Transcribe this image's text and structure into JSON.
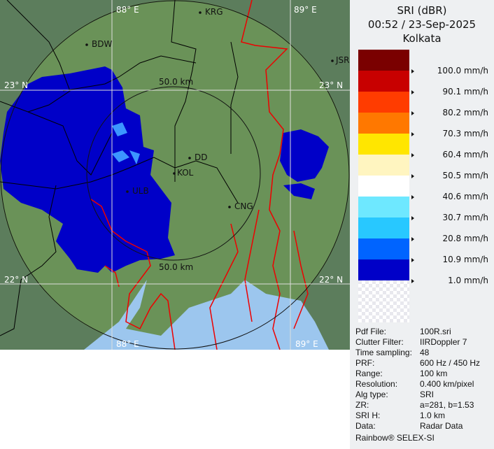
{
  "header": {
    "product": "SRI (dBR)",
    "datetime": "00:52 / 23-Sep-2025",
    "site": "Kolkata"
  },
  "legend": {
    "colors": [
      "#7a0000",
      "#c80000",
      "#ff3c00",
      "#ff7800",
      "#ffe600",
      "#fff5c0",
      "#ffffff",
      "#6ee8ff",
      "#28c8ff",
      "#0064ff",
      "#0000c8"
    ],
    "labels": [
      "100.0 mm/h",
      "90.1 mm/h",
      "80.2 mm/h",
      "70.3 mm/h",
      "60.4 mm/h",
      "50.5 mm/h",
      "40.6 mm/h",
      "30.7 mm/h",
      "20.8 mm/h",
      "10.9 mm/h",
      "1.0 mm/h"
    ]
  },
  "info": [
    {
      "key": "Pdf File:",
      "value": "100R.sri"
    },
    {
      "key": "Clutter Filter:",
      "value": "IIRDoppler 7"
    },
    {
      "key": "Time sampling:",
      "value": "48"
    },
    {
      "key": "PRF:",
      "value": "600 Hz / 450 Hz"
    },
    {
      "key": "Range:",
      "value": "100 km"
    },
    {
      "key": "Resolution:",
      "value": "0.400 km/pixel"
    },
    {
      "key": "Alg type:",
      "value": "SRI"
    },
    {
      "key": "ZR:",
      "value": "a=281, b=1.53"
    },
    {
      "key": "SRI H:",
      "value": "1.0 km"
    },
    {
      "key": "Data:",
      "value": "Radar Data"
    }
  ],
  "footer": "Rainbow® SELEX-SI",
  "map": {
    "grid_labels": {
      "lon_left": "88° E",
      "lon_right": "89° E",
      "lat_top": "23° N",
      "lat_bottom": "22° N"
    },
    "range_rings": [
      "50.0 km",
      "50.0 km"
    ],
    "cities": [
      "BDW",
      "KRG",
      "JSR",
      "DD",
      "KOL",
      "ULB",
      "CNG"
    ]
  }
}
